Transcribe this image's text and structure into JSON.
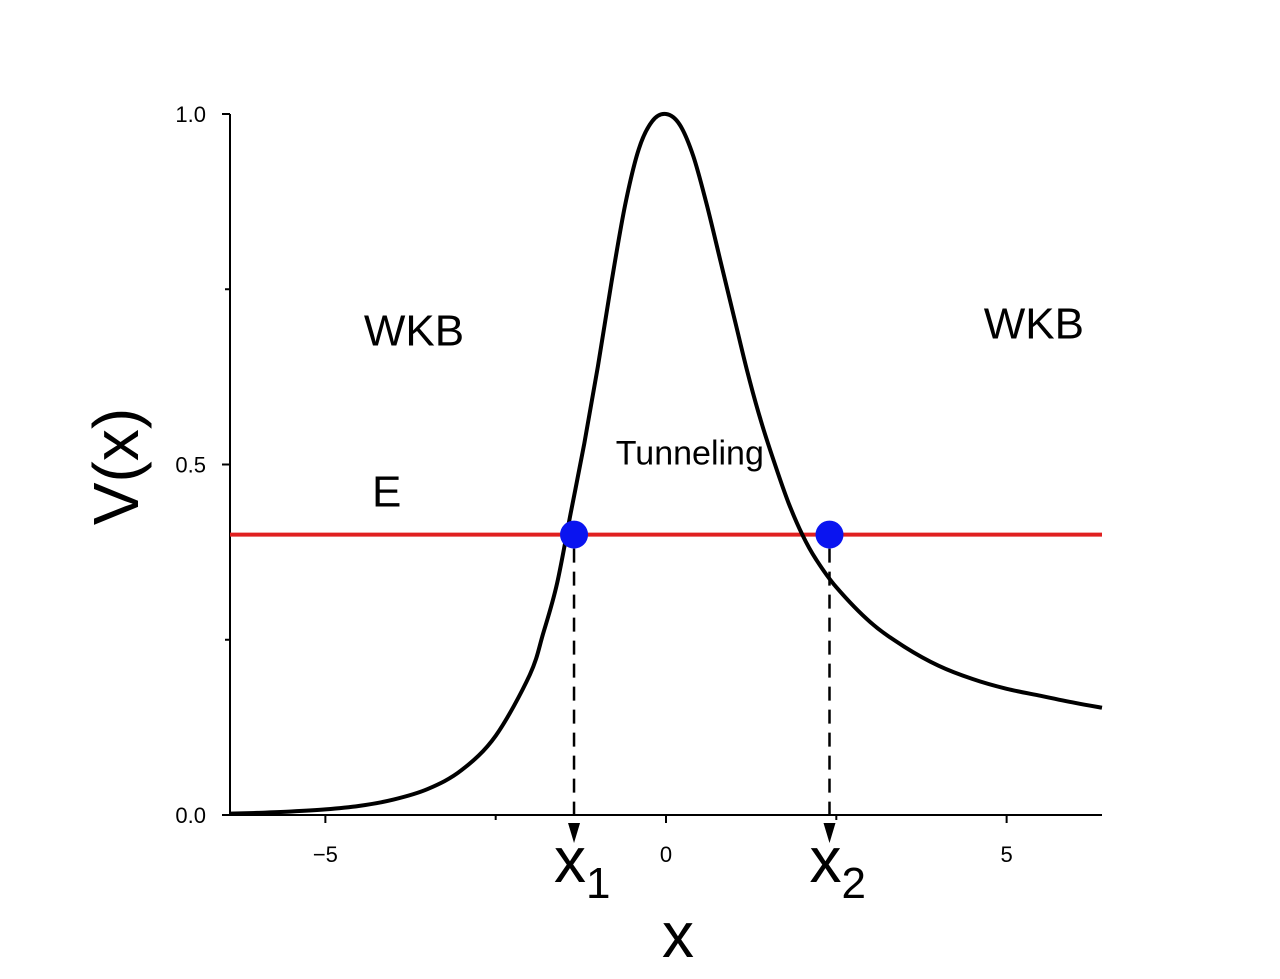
{
  "chart_data": {
    "type": "line",
    "xlabel": "x",
    "ylabel": "V(x)",
    "xlim": [
      -6.4,
      6.4
    ],
    "ylim": [
      0.0,
      1.0
    ],
    "x_ticks": [
      -5,
      0,
      5
    ],
    "x_tick_labels": [
      "−5",
      "0",
      "5"
    ],
    "x_minor_ticks": [
      -2.5,
      2.5
    ],
    "y_ticks": [
      0.0,
      0.5,
      1.0
    ],
    "y_tick_labels": [
      "0.0",
      "0.5",
      "1.0"
    ],
    "y_minor_ticks": [
      0.25,
      0.75
    ],
    "grid": false,
    "series": [
      {
        "color": "#000000",
        "x": [
          -6.4,
          -6.0,
          -5.5,
          -5.0,
          -4.5,
          -4.0,
          -3.5,
          -3.0,
          -2.5,
          -2.0,
          -1.8,
          -1.6,
          -1.4,
          -1.2,
          -1.0,
          -0.8,
          -0.6,
          -0.4,
          -0.2,
          0.0,
          0.2,
          0.4,
          0.6,
          0.8,
          1.0,
          1.2,
          1.4,
          1.6,
          1.8,
          2.0,
          2.2,
          2.5,
          3.0,
          3.5,
          4.0,
          4.5,
          5.0,
          5.5,
          6.0,
          6.4
        ],
        "y": [
          0.002,
          0.003,
          0.005,
          0.008,
          0.013,
          0.022,
          0.037,
          0.064,
          0.113,
          0.2,
          0.26,
          0.33,
          0.43,
          0.53,
          0.64,
          0.76,
          0.87,
          0.95,
          0.99,
          1.0,
          0.985,
          0.94,
          0.87,
          0.79,
          0.71,
          0.63,
          0.56,
          0.5,
          0.445,
          0.4,
          0.365,
          0.325,
          0.275,
          0.24,
          0.213,
          0.194,
          0.18,
          0.17,
          0.16,
          0.153
        ]
      }
    ],
    "energy_level": {
      "label": "E",
      "y": 0.4,
      "color": "#e02020"
    },
    "turning_points": [
      {
        "label": "x",
        "subscript": "1",
        "x": -1.35,
        "y": 0.4,
        "color": "#0a14f0"
      },
      {
        "label": "x",
        "subscript": "2",
        "x": 2.4,
        "y": 0.4,
        "color": "#0a14f0"
      }
    ],
    "annotations": [
      {
        "id": "left-region",
        "text": "WKB",
        "x": -3.7,
        "y": 0.67
      },
      {
        "id": "right-region",
        "text": "WKB",
        "x": 5.4,
        "y": 0.68
      },
      {
        "id": "barrier-region",
        "text": "Tunneling",
        "x": 0.35,
        "y": 0.5
      }
    ]
  }
}
